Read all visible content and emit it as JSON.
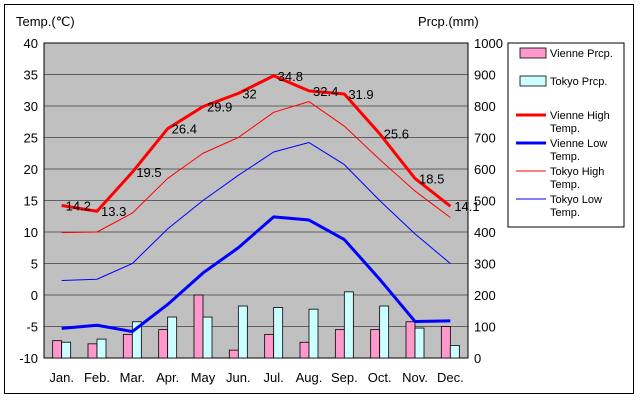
{
  "chart_data": {
    "type": "bar",
    "ylabel_left": "Temp.(℃)",
    "ylabel_right": "Prcp.(mm)",
    "categories": [
      "Jan.",
      "Feb.",
      "Mar.",
      "Apr.",
      "May",
      "Jun.",
      "Jul.",
      "Aug.",
      "Sep.",
      "Oct.",
      "Nov.",
      "Dec."
    ],
    "ylim_left": [
      -10,
      40
    ],
    "yticks_left": [
      -10,
      -5,
      0,
      5,
      10,
      15,
      20,
      25,
      30,
      35,
      40
    ],
    "ylim_right": [
      0,
      1000
    ],
    "yticks_right": [
      0,
      100,
      200,
      300,
      400,
      500,
      600,
      700,
      800,
      900,
      1000
    ],
    "grid": true,
    "legend_position": "right",
    "series": [
      {
        "name": "Vienne Prcp.",
        "kind": "bar",
        "axis": "right",
        "color": "#ff99cc",
        "values": [
          55,
          45,
          75,
          90,
          200,
          25,
          75,
          50,
          90,
          90,
          115,
          100
        ]
      },
      {
        "name": "Tokyo Prcp.",
        "kind": "bar",
        "axis": "right",
        "color": "#ccffff",
        "values": [
          50,
          60,
          115,
          130,
          130,
          165,
          160,
          155,
          210,
          165,
          95,
          40
        ]
      },
      {
        "name": "Vienne High Temp.",
        "kind": "line",
        "axis": "left",
        "color": "#ff0000",
        "width": 3,
        "values": [
          14.2,
          13.3,
          19.5,
          26.4,
          29.9,
          32,
          34.8,
          32.4,
          31.9,
          25.6,
          18.5,
          14.1
        ]
      },
      {
        "name": "Vienne Low Temp.",
        "kind": "line",
        "axis": "left",
        "color": "#0000ff",
        "width": 3,
        "values": [
          -5.3,
          -4.8,
          -5.8,
          -1.5,
          3.5,
          7.5,
          12.4,
          11.9,
          8.8,
          2.5,
          -4.2,
          -4.1
        ]
      },
      {
        "name": "Tokyo High Temp.",
        "kind": "line",
        "axis": "left",
        "color": "#ff0000",
        "width": 1,
        "values": [
          9.9,
          10,
          13,
          18.5,
          22.5,
          25,
          29,
          30.7,
          26.8,
          21.5,
          16.5,
          12.3
        ]
      },
      {
        "name": "Tokyo Low Temp.",
        "kind": "line",
        "axis": "left",
        "color": "#0000ff",
        "width": 1,
        "values": [
          2.3,
          2.5,
          5,
          10.5,
          15,
          19,
          22.7,
          24.2,
          20.7,
          15,
          9.7,
          5
        ]
      }
    ],
    "data_labels": [
      "14.2",
      "13.3",
      "19.5",
      "26.4",
      "29.9",
      "32",
      "34.8",
      "32.4",
      "31.9",
      "25.6",
      "18.5",
      "14.1"
    ]
  },
  "legend": {
    "items": [
      {
        "label": "Vienne Prcp.",
        "kind": "bar",
        "color": "#ff99cc"
      },
      {
        "label": "Tokyo Prcp.",
        "kind": "bar",
        "color": "#ccffff"
      },
      {
        "label": "Vienne High Temp.",
        "kind": "line",
        "color": "#ff0000",
        "width": 3
      },
      {
        "label": "Vienne Low Temp.",
        "kind": "line",
        "color": "#0000ff",
        "width": 3
      },
      {
        "label": "Tokyo High Temp.",
        "kind": "line",
        "color": "#ff0000",
        "width": 1
      },
      {
        "label": "Tokyo Low Temp.",
        "kind": "line",
        "color": "#0000ff",
        "width": 1
      }
    ]
  },
  "colors": {
    "plot_background": "#c0c0c0",
    "grid": "#000000"
  }
}
